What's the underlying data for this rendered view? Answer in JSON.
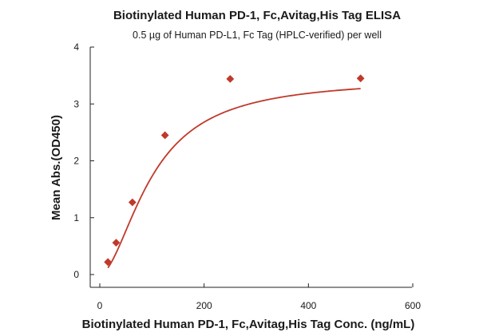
{
  "chart_data": {
    "type": "scatter",
    "title": "Biotinylated Human PD-1, Fc,Avitag,His Tag ELISA",
    "subtitle": "0.5 µg of Human PD-L1, Fc Tag (HPLC-verified) per well",
    "xlabel": "Biotinylated Human PD-1, Fc,Avitag,His Tag Conc. (ng/mL)",
    "ylabel": "Mean Abs.(OD450)",
    "xlim": [
      0,
      600
    ],
    "ylim": [
      0,
      4
    ],
    "x_ticks": [
      0,
      200,
      400,
      600
    ],
    "y_ticks": [
      0,
      1,
      2,
      3,
      4
    ],
    "grid": false,
    "series": [
      {
        "color": "#c0392b",
        "x": [
          15.6,
          31.3,
          62.5,
          125,
          250,
          500
        ],
        "y": [
          0.22,
          0.56,
          1.27,
          2.45,
          3.44,
          3.45
        ],
        "fit": {
          "type": "4PL",
          "bottom": 0.0,
          "top": 3.45,
          "ec50": 100,
          "hill": 1.8
        }
      }
    ]
  }
}
